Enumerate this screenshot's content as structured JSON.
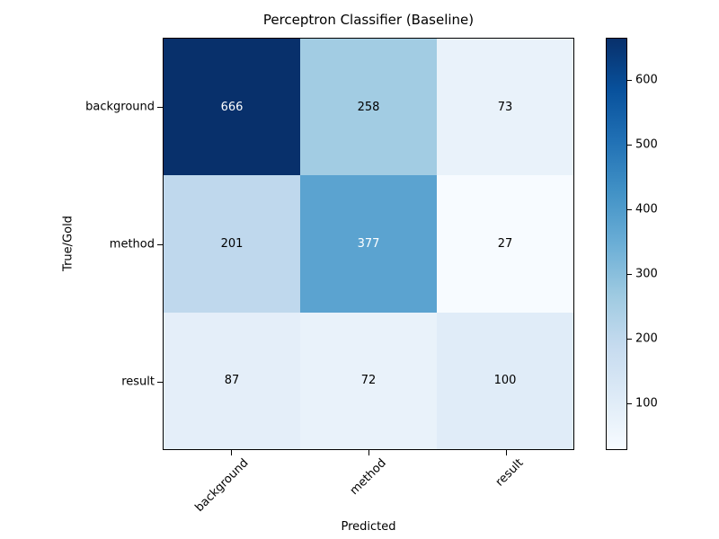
{
  "chart_data": {
    "type": "heatmap",
    "title": "Perceptron Classifier (Baseline)",
    "xlabel": "Predicted",
    "ylabel": "True/Gold",
    "x_categories": [
      "background",
      "method",
      "result"
    ],
    "y_categories": [
      "background",
      "method",
      "result"
    ],
    "values": [
      [
        666,
        258,
        73
      ],
      [
        201,
        377,
        27
      ],
      [
        87,
        72,
        100
      ]
    ],
    "vmin": 27,
    "vmax": 666,
    "colormap": "Blues",
    "colorbar_ticks": [
      100,
      200,
      300,
      400,
      500,
      600
    ],
    "legend_position": "right-colorbar",
    "grid": false,
    "x_tick_rotation_deg": 45,
    "cell_colors": [
      [
        "#08306b",
        "#a2cce3",
        "#e9f2fa"
      ],
      [
        "#bfd8ed",
        "#5ba3d0",
        "#f7fbff"
      ],
      [
        "#e4eef9",
        "#e9f2fa",
        "#e0ecf8"
      ]
    ],
    "cell_text_colors": [
      [
        "#ffffff",
        "#000000",
        "#000000"
      ],
      [
        "#000000",
        "#ffffff",
        "#000000"
      ],
      [
        "#000000",
        "#000000",
        "#000000"
      ]
    ],
    "colormap_stops": [
      "#f7fbff",
      "#deebf7",
      "#c6dbef",
      "#9ecae1",
      "#6baed6",
      "#4292c6",
      "#2171b5",
      "#08519c",
      "#08306b"
    ]
  },
  "colors": {
    "axis": "#000000",
    "background": "#ffffff",
    "max_cell": "#08306b",
    "min_cell": "#f7fbff"
  }
}
